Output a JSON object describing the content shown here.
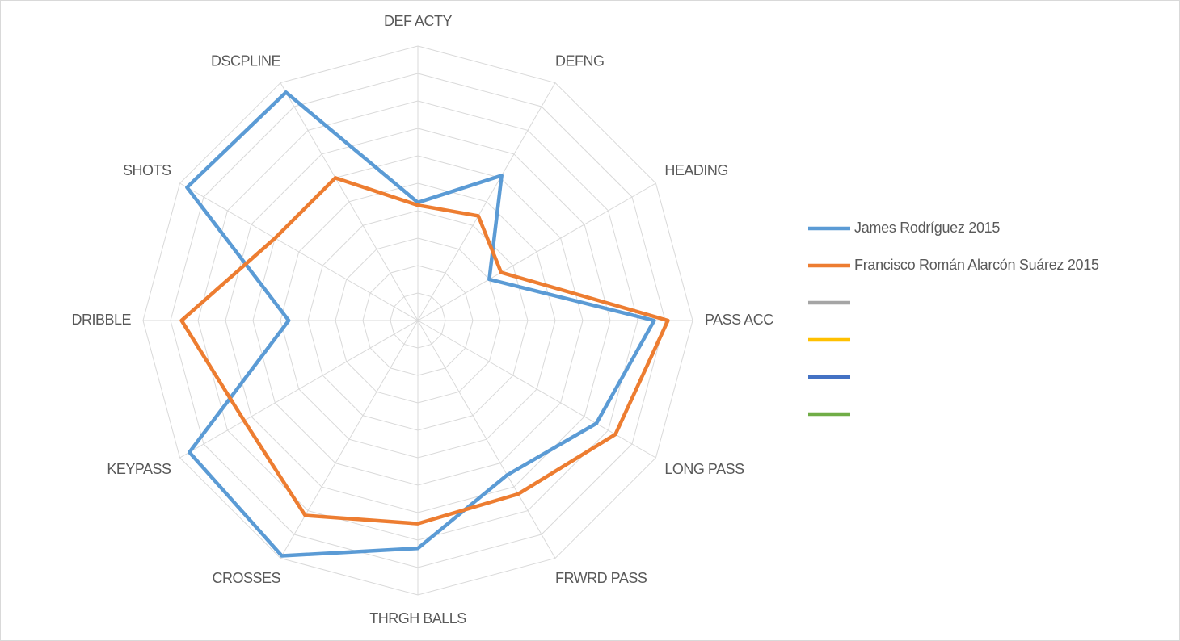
{
  "chart_data": {
    "type": "radar",
    "categories": [
      "DEF ACTY",
      "DEFNG",
      "HEADING",
      "PASS ACC",
      "LONG PASS",
      "FRWRD PASS",
      "THRGH BALLS",
      "CROSSES",
      "KEYPASS",
      "DRIBBLE",
      "SHOTS",
      "DSCPLINE"
    ],
    "rlim": [
      0,
      10
    ],
    "rticks": [
      0,
      1,
      2,
      3,
      4,
      5,
      6,
      7,
      8,
      9,
      10
    ],
    "grid": true,
    "legend": "right",
    "series": [
      {
        "name": "James Rodríguez 2015",
        "color": "#5b9bd5",
        "values": [
          4.3,
          6.1,
          3.0,
          8.6,
          7.5,
          6.5,
          8.3,
          9.9,
          9.6,
          4.7,
          9.7,
          9.6
        ]
      },
      {
        "name": "Francisco Román Alarcón Suárez 2015",
        "color": "#ed7d31",
        "values": [
          4.2,
          4.4,
          3.5,
          9.1,
          8.3,
          7.3,
          7.4,
          8.2,
          7.3,
          8.6,
          6.0,
          6.0
        ]
      },
      {
        "name": null,
        "color": "#a5a5a5",
        "values": null
      },
      {
        "name": null,
        "color": "#ffc000",
        "values": null
      },
      {
        "name": null,
        "color": "#4472c4",
        "values": null
      },
      {
        "name": null,
        "color": "#70ad47",
        "values": null
      }
    ]
  }
}
